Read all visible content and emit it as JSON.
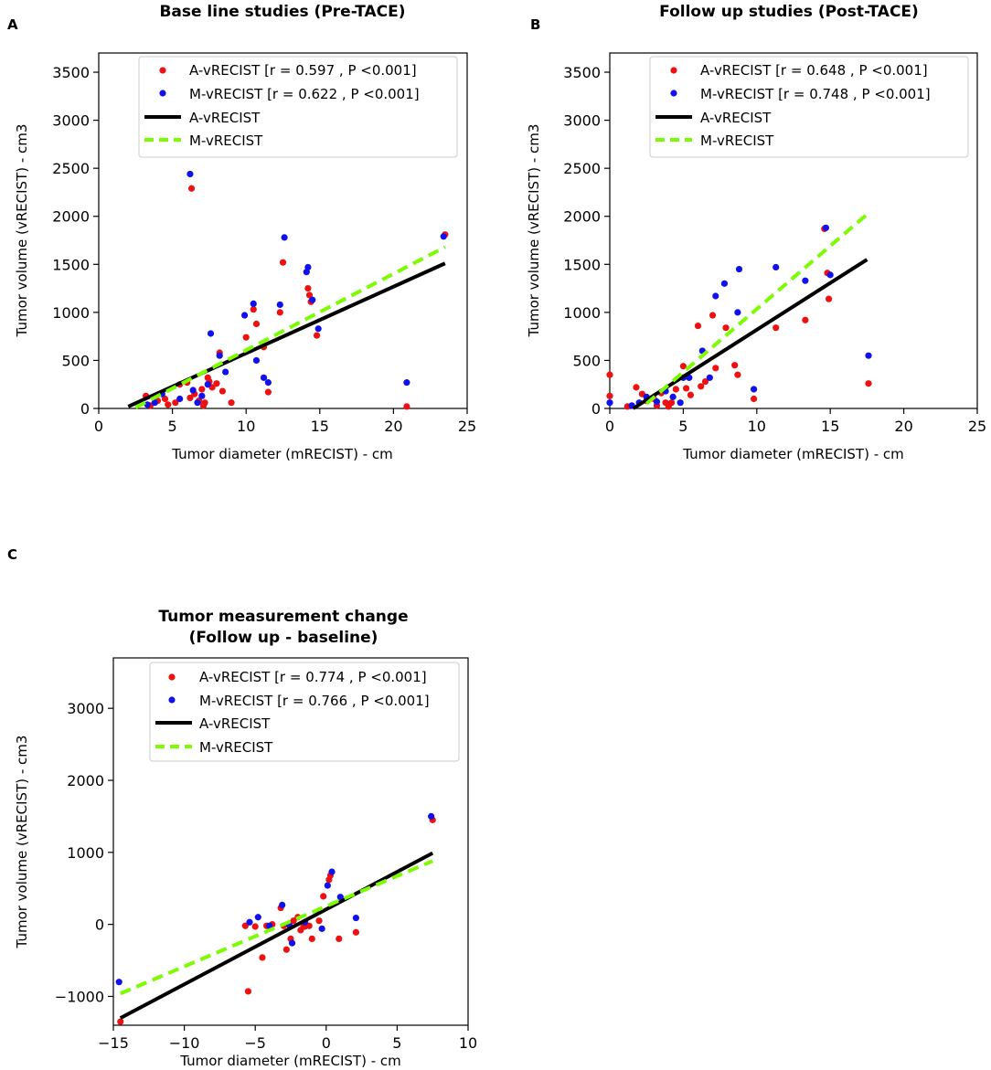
{
  "panels": [
    {
      "letter": "A"
    },
    {
      "letter": "B"
    },
    {
      "letter": "C"
    }
  ],
  "chart_data": [
    {
      "type": "scatter",
      "title": "Base line studies (Pre-TACE)",
      "xlabel": "Tumor diameter (mRECIST) - cm",
      "ylabel": "Tumor volume (vRECIST) - cm3",
      "xlim": [
        0,
        25
      ],
      "ylim": [
        0,
        3700
      ],
      "xticks": [
        0,
        5,
        10,
        15,
        20,
        25
      ],
      "yticks": [
        0,
        500,
        1000,
        1500,
        2000,
        2500,
        3000,
        3500
      ],
      "legend_position": "top-right",
      "colors": {
        "a_points": "#ee1111",
        "m_points": "#1111ee",
        "a_line": "#000000",
        "m_line": "#7cfc00"
      },
      "legend": [
        "A-vRECIST [r = 0.597 , P <0.001]",
        "M-vRECIST [r = 0.622 , P <0.001]",
        "A-vRECIST",
        "M-vRECIST"
      ],
      "series": [
        {
          "name": "A-vRECIST [r = 0.597 , P <0.001]",
          "kind": "points",
          "color": "#ee1111",
          "points": [
            [
              3.2,
              130
            ],
            [
              3.5,
              30
            ],
            [
              4.0,
              80
            ],
            [
              4.5,
              100
            ],
            [
              4.7,
              40
            ],
            [
              5.2,
              60
            ],
            [
              5.5,
              250
            ],
            [
              6.0,
              270
            ],
            [
              6.2,
              110
            ],
            [
              6.3,
              2290
            ],
            [
              6.5,
              150
            ],
            [
              6.8,
              80
            ],
            [
              7.0,
              200
            ],
            [
              7.1,
              30
            ],
            [
              7.2,
              60
            ],
            [
              7.4,
              320
            ],
            [
              7.5,
              280
            ],
            [
              7.7,
              220
            ],
            [
              8.0,
              260
            ],
            [
              8.2,
              580
            ],
            [
              8.4,
              180
            ],
            [
              9.0,
              60
            ],
            [
              10.0,
              740
            ],
            [
              10.5,
              1030
            ],
            [
              10.7,
              880
            ],
            [
              11.2,
              640
            ],
            [
              11.5,
              170
            ],
            [
              12.3,
              1000
            ],
            [
              12.5,
              1520
            ],
            [
              14.2,
              1250
            ],
            [
              14.3,
              1180
            ],
            [
              14.4,
              1110
            ],
            [
              14.8,
              760
            ],
            [
              20.9,
              20
            ],
            [
              23.5,
              1810
            ]
          ]
        },
        {
          "name": "M-vRECIST [r = 0.622 , P <0.001]",
          "kind": "points",
          "color": "#1111ee",
          "points": [
            [
              3.3,
              40
            ],
            [
              3.8,
              60
            ],
            [
              4.3,
              150
            ],
            [
              5.5,
              100
            ],
            [
              6.2,
              2440
            ],
            [
              6.4,
              190
            ],
            [
              6.7,
              60
            ],
            [
              7.0,
              130
            ],
            [
              7.4,
              250
            ],
            [
              7.6,
              780
            ],
            [
              8.2,
              550
            ],
            [
              8.6,
              380
            ],
            [
              9.9,
              970
            ],
            [
              10.5,
              1090
            ],
            [
              10.7,
              500
            ],
            [
              11.2,
              320
            ],
            [
              11.5,
              270
            ],
            [
              12.3,
              1080
            ],
            [
              12.6,
              1780
            ],
            [
              14.1,
              1420
            ],
            [
              14.2,
              1470
            ],
            [
              14.5,
              1130
            ],
            [
              14.9,
              830
            ],
            [
              20.9,
              270
            ],
            [
              23.4,
              1790
            ]
          ]
        },
        {
          "name": "A-vRECIST",
          "kind": "line",
          "color": "#000000",
          "points": [
            [
              2.0,
              20
            ],
            [
              23.5,
              1510
            ]
          ]
        },
        {
          "name": "M-vRECIST",
          "kind": "dashed",
          "color": "#7cfc00",
          "points": [
            [
              2.5,
              10
            ],
            [
              23.5,
              1680
            ]
          ]
        }
      ]
    },
    {
      "type": "scatter",
      "title": "Follow up studies (Post-TACE)",
      "xlabel": "Tumor diameter (mRECIST) - cm",
      "ylabel": "Tumor volume (vRECIST) - cm3",
      "xlim": [
        0,
        25
      ],
      "ylim": [
        0,
        3700
      ],
      "xticks": [
        0,
        5,
        10,
        15,
        20,
        25
      ],
      "yticks": [
        0,
        500,
        1000,
        1500,
        2000,
        2500,
        3000,
        3500
      ],
      "legend_position": "top-right",
      "colors": {
        "a_points": "#ee1111",
        "m_points": "#1111ee",
        "a_line": "#000000",
        "m_line": "#7cfc00"
      },
      "legend": [
        "A-vRECIST [r = 0.648 , P <0.001]",
        "M-vRECIST [r = 0.748 , P <0.001]",
        "A-vRECIST",
        "M-vRECIST"
      ],
      "series": [
        {
          "name": "A-vRECIST [r = 0.648 , P <0.001]",
          "kind": "points",
          "color": "#ee1111",
          "points": [
            [
              0.0,
              350
            ],
            [
              0.0,
              130
            ],
            [
              1.2,
              20
            ],
            [
              1.8,
              220
            ],
            [
              2.2,
              150
            ],
            [
              2.5,
              80
            ],
            [
              3.0,
              100
            ],
            [
              3.2,
              30
            ],
            [
              3.5,
              160
            ],
            [
              3.8,
              60
            ],
            [
              4.0,
              20
            ],
            [
              4.2,
              60
            ],
            [
              4.5,
              200
            ],
            [
              5.0,
              440
            ],
            [
              5.2,
              210
            ],
            [
              5.5,
              140
            ],
            [
              6.0,
              860
            ],
            [
              6.2,
              230
            ],
            [
              6.5,
              280
            ],
            [
              7.0,
              970
            ],
            [
              7.2,
              420
            ],
            [
              7.9,
              840
            ],
            [
              8.5,
              450
            ],
            [
              8.7,
              350
            ],
            [
              9.8,
              100
            ],
            [
              11.3,
              840
            ],
            [
              13.3,
              920
            ],
            [
              14.6,
              1870
            ],
            [
              14.8,
              1410
            ],
            [
              14.9,
              1140
            ],
            [
              17.6,
              260
            ]
          ]
        },
        {
          "name": "M-vRECIST [r = 0.748 , P <0.001]",
          "kind": "points",
          "color": "#1111ee",
          "points": [
            [
              0.0,
              60
            ],
            [
              1.5,
              30
            ],
            [
              2.0,
              60
            ],
            [
              2.5,
              120
            ],
            [
              3.2,
              70
            ],
            [
              3.8,
              180
            ],
            [
              4.3,
              120
            ],
            [
              4.8,
              60
            ],
            [
              5.0,
              320
            ],
            [
              5.4,
              320
            ],
            [
              6.3,
              600
            ],
            [
              6.8,
              320
            ],
            [
              7.2,
              1170
            ],
            [
              7.8,
              1300
            ],
            [
              8.7,
              1000
            ],
            [
              8.8,
              1450
            ],
            [
              9.8,
              200
            ],
            [
              11.3,
              1470
            ],
            [
              13.3,
              1330
            ],
            [
              14.7,
              1880
            ],
            [
              15.0,
              1390
            ],
            [
              17.6,
              550
            ]
          ]
        },
        {
          "name": "A-vRECIST",
          "kind": "line",
          "color": "#000000",
          "points": [
            [
              1.6,
              0
            ],
            [
              17.5,
              1550
            ]
          ]
        },
        {
          "name": "M-vRECIST",
          "kind": "dashed",
          "color": "#7cfc00",
          "points": [
            [
              2.5,
              50
            ],
            [
              17.5,
              2020
            ]
          ]
        }
      ]
    },
    {
      "type": "scatter",
      "title": "Tumor measurement change",
      "subtitle": "(Follow up - baseline)",
      "xlabel": "Tumor diameter (mRECIST) - cm",
      "ylabel": "Tumor volume (vRECIST) - cm3",
      "xlim": [
        -15,
        10
      ],
      "ylim": [
        -1400,
        3700
      ],
      "xticks": [
        -15,
        -10,
        -5,
        0,
        5,
        10
      ],
      "xtick_labels": [
        "−15",
        "−10",
        "−5",
        "0",
        "5",
        "10"
      ],
      "yticks": [
        -1000,
        0,
        1000,
        2000,
        3000
      ],
      "ytick_labels": [
        "−1000",
        "0",
        "1000",
        "2000",
        "3000"
      ],
      "legend_position": "top-right",
      "colors": {
        "a_points": "#ee1111",
        "m_points": "#1111ee",
        "a_line": "#000000",
        "m_line": "#7cfc00"
      },
      "legend": [
        "A-vRECIST [r = 0.774 , P <0.001]",
        "M-vRECIST [r = 0.766 , P <0.001]",
        "A-vRECIST",
        "M-vRECIST"
      ],
      "series": [
        {
          "name": "A-vRECIST [r = 0.774 , P <0.001]",
          "kind": "points",
          "color": "#ee1111",
          "points": [
            [
              -14.5,
              -1350
            ],
            [
              -5.5,
              -930
            ],
            [
              -5.7,
              -20
            ],
            [
              -5.0,
              -30
            ],
            [
              -4.5,
              -460
            ],
            [
              -4.2,
              -20
            ],
            [
              -3.8,
              0
            ],
            [
              -3.2,
              230
            ],
            [
              -3.0,
              -20
            ],
            [
              -2.8,
              -350
            ],
            [
              -2.5,
              -200
            ],
            [
              -2.3,
              50
            ],
            [
              -2.0,
              100
            ],
            [
              -1.8,
              -80
            ],
            [
              -1.6,
              -30
            ],
            [
              -1.5,
              -30
            ],
            [
              -1.2,
              -20
            ],
            [
              -1.0,
              -200
            ],
            [
              -0.5,
              50
            ],
            [
              -0.2,
              390
            ],
            [
              0.2,
              620
            ],
            [
              0.3,
              680
            ],
            [
              0.9,
              -200
            ],
            [
              2.1,
              -110
            ],
            [
              7.5,
              1450
            ]
          ]
        },
        {
          "name": "M-vRECIST [r = 0.766 , P <0.001]",
          "kind": "points",
          "color": "#1111ee",
          "points": [
            [
              -14.6,
              -800
            ],
            [
              -5.4,
              30
            ],
            [
              -4.8,
              100
            ],
            [
              -4.0,
              -20
            ],
            [
              -3.1,
              270
            ],
            [
              -2.6,
              -10
            ],
            [
              -2.4,
              -260
            ],
            [
              -1.5,
              30
            ],
            [
              -0.3,
              -60
            ],
            [
              0.1,
              540
            ],
            [
              0.4,
              730
            ],
            [
              1.0,
              380
            ],
            [
              2.1,
              90
            ],
            [
              7.4,
              1500
            ]
          ]
        },
        {
          "name": "A-vRECIST",
          "kind": "line",
          "color": "#000000",
          "points": [
            [
              -14.5,
              -1300
            ],
            [
              7.5,
              990
            ]
          ]
        },
        {
          "name": "M-vRECIST",
          "kind": "dashed",
          "color": "#7cfc00",
          "points": [
            [
              -14.5,
              -960
            ],
            [
              7.5,
              880
            ]
          ]
        }
      ]
    }
  ]
}
